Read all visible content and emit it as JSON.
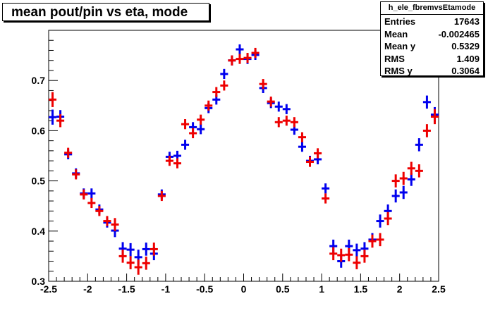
{
  "window": {
    "title": "mean pout/pin vs eta, mode"
  },
  "stats": {
    "name": "h_ele_fbremvsEtamode",
    "rows": [
      {
        "label": "Entries",
        "value": "17643"
      },
      {
        "label": "Mean",
        "value": "-0.002465"
      },
      {
        "label": "Mean y",
        "value": "0.5329"
      },
      {
        "label": "RMS",
        "value": "1.409"
      },
      {
        "label": "RMS y",
        "value": "0.3064"
      }
    ]
  },
  "chart_data": {
    "type": "scatter",
    "title": "mean pout/pin vs eta, mode",
    "xlabel": "",
    "ylabel": "",
    "xlim": [
      -2.5,
      2.5
    ],
    "ylim": [
      0.3,
      0.8
    ],
    "x_ticks": [
      "-2.5",
      "-2",
      "-1.5",
      "-1",
      "-0.5",
      "0",
      "0.5",
      "1",
      "1.5",
      "2",
      "2.5"
    ],
    "y_ticks": [
      "0.3",
      "0.4",
      "0.5",
      "0.6",
      "0.7"
    ],
    "grid": false,
    "x_error": 0.05,
    "series": [
      {
        "color": "#0000ee",
        "points": [
          [
            -2.45,
            0.627,
            0.015
          ],
          [
            -2.35,
            0.628,
            0.013
          ],
          [
            -2.25,
            0.553,
            0.01
          ],
          [
            -2.15,
            0.515,
            0.01
          ],
          [
            -2.05,
            0.475,
            0.01
          ],
          [
            -1.95,
            0.475,
            0.01
          ],
          [
            -1.85,
            0.443,
            0.01
          ],
          [
            -1.75,
            0.417,
            0.01
          ],
          [
            -1.65,
            0.401,
            0.013
          ],
          [
            -1.55,
            0.365,
            0.013
          ],
          [
            -1.45,
            0.363,
            0.013
          ],
          [
            -1.35,
            0.348,
            0.015
          ],
          [
            -1.25,
            0.364,
            0.013
          ],
          [
            -1.15,
            0.355,
            0.013
          ],
          [
            -1.05,
            0.473,
            0.01
          ],
          [
            -0.95,
            0.548,
            0.01
          ],
          [
            -0.85,
            0.55,
            0.01
          ],
          [
            -0.75,
            0.572,
            0.01
          ],
          [
            -0.65,
            0.607,
            0.01
          ],
          [
            -0.55,
            0.603,
            0.01
          ],
          [
            -0.45,
            0.645,
            0.01
          ],
          [
            -0.35,
            0.662,
            0.01
          ],
          [
            -0.25,
            0.713,
            0.01
          ],
          [
            -0.15,
            0.74,
            0.01
          ],
          [
            -0.05,
            0.762,
            0.01
          ],
          [
            0.05,
            0.743,
            0.01
          ],
          [
            0.15,
            0.751,
            0.01
          ],
          [
            0.25,
            0.685,
            0.01
          ],
          [
            0.35,
            0.655,
            0.01
          ],
          [
            0.45,
            0.648,
            0.01
          ],
          [
            0.55,
            0.643,
            0.01
          ],
          [
            0.65,
            0.602,
            0.01
          ],
          [
            0.75,
            0.568,
            0.01
          ],
          [
            0.85,
            0.54,
            0.01
          ],
          [
            0.95,
            0.543,
            0.01
          ],
          [
            1.05,
            0.485,
            0.01
          ],
          [
            1.15,
            0.37,
            0.013
          ],
          [
            1.25,
            0.34,
            0.013
          ],
          [
            1.35,
            0.37,
            0.013
          ],
          [
            1.45,
            0.362,
            0.013
          ],
          [
            1.55,
            0.365,
            0.013
          ],
          [
            1.65,
            0.383,
            0.013
          ],
          [
            1.75,
            0.42,
            0.013
          ],
          [
            1.85,
            0.44,
            0.013
          ],
          [
            1.95,
            0.47,
            0.013
          ],
          [
            2.05,
            0.477,
            0.013
          ],
          [
            2.15,
            0.503,
            0.013
          ],
          [
            2.25,
            0.572,
            0.013
          ],
          [
            2.35,
            0.657,
            0.013
          ],
          [
            2.45,
            0.632,
            0.015
          ]
        ]
      },
      {
        "color": "#ee0000",
        "points": [
          [
            -2.45,
            0.662,
            0.015
          ],
          [
            -2.35,
            0.62,
            0.013
          ],
          [
            -2.25,
            0.556,
            0.01
          ],
          [
            -2.15,
            0.513,
            0.01
          ],
          [
            -2.05,
            0.473,
            0.01
          ],
          [
            -1.95,
            0.456,
            0.01
          ],
          [
            -1.85,
            0.44,
            0.01
          ],
          [
            -1.75,
            0.42,
            0.01
          ],
          [
            -1.65,
            0.413,
            0.013
          ],
          [
            -1.55,
            0.35,
            0.013
          ],
          [
            -1.45,
            0.337,
            0.013
          ],
          [
            -1.35,
            0.328,
            0.015
          ],
          [
            -1.25,
            0.336,
            0.013
          ],
          [
            -1.15,
            0.364,
            0.013
          ],
          [
            -1.05,
            0.47,
            0.01
          ],
          [
            -0.95,
            0.54,
            0.01
          ],
          [
            -0.85,
            0.535,
            0.01
          ],
          [
            -0.75,
            0.613,
            0.01
          ],
          [
            -0.65,
            0.595,
            0.01
          ],
          [
            -0.55,
            0.622,
            0.01
          ],
          [
            -0.45,
            0.65,
            0.01
          ],
          [
            -0.35,
            0.677,
            0.01
          ],
          [
            -0.25,
            0.69,
            0.01
          ],
          [
            -0.15,
            0.74,
            0.01
          ],
          [
            -0.05,
            0.743,
            0.01
          ],
          [
            0.05,
            0.745,
            0.01
          ],
          [
            0.15,
            0.755,
            0.01
          ],
          [
            0.25,
            0.693,
            0.01
          ],
          [
            0.35,
            0.658,
            0.01
          ],
          [
            0.45,
            0.617,
            0.01
          ],
          [
            0.55,
            0.62,
            0.01
          ],
          [
            0.65,
            0.617,
            0.01
          ],
          [
            0.75,
            0.587,
            0.01
          ],
          [
            0.85,
            0.538,
            0.01
          ],
          [
            0.95,
            0.555,
            0.01
          ],
          [
            1.05,
            0.465,
            0.01
          ],
          [
            1.15,
            0.355,
            0.013
          ],
          [
            1.25,
            0.352,
            0.013
          ],
          [
            1.35,
            0.353,
            0.013
          ],
          [
            1.45,
            0.337,
            0.013
          ],
          [
            1.55,
            0.35,
            0.013
          ],
          [
            1.65,
            0.38,
            0.013
          ],
          [
            1.75,
            0.383,
            0.013
          ],
          [
            1.85,
            0.425,
            0.013
          ],
          [
            1.95,
            0.5,
            0.013
          ],
          [
            2.05,
            0.505,
            0.013
          ],
          [
            2.15,
            0.525,
            0.013
          ],
          [
            2.25,
            0.52,
            0.013
          ],
          [
            2.35,
            0.6,
            0.013
          ],
          [
            2.45,
            0.628,
            0.015
          ]
        ]
      }
    ]
  }
}
